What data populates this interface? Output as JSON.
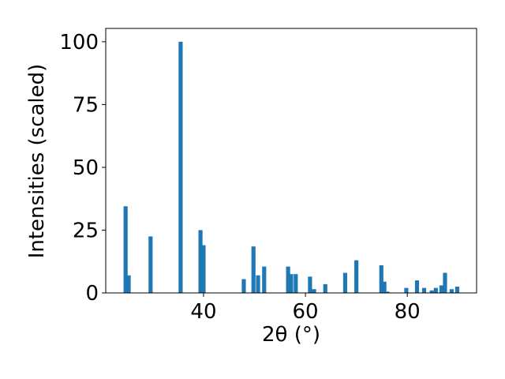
{
  "chart_data": {
    "type": "bar",
    "xlabel": "2θ (°)",
    "ylabel": "Intensities (scaled)",
    "x": [
      24.7,
      25.3,
      29.6,
      35.5,
      39.4,
      40.0,
      47.9,
      49.8,
      50.7,
      51.9,
      56.6,
      57.2,
      58.1,
      60.9,
      61.7,
      63.9,
      67.8,
      70.0,
      74.9,
      75.5,
      76.1,
      79.8,
      81.9,
      83.3,
      84.8,
      85.6,
      86.7,
      87.4,
      88.7,
      89.8
    ],
    "values": [
      34.5,
      7,
      22.5,
      100,
      25,
      19,
      5.5,
      18.5,
      7,
      10.5,
      10.5,
      7.5,
      7.5,
      6.5,
      1.5,
      3.5,
      8,
      13,
      11,
      4.5,
      0.5,
      2,
      5,
      2,
      1,
      2,
      3,
      8,
      1.5,
      2.5
    ],
    "color": "#1f77b4",
    "xlim": [
      20.8,
      93.6
    ],
    "xticks": [
      40,
      60,
      80
    ],
    "ylim": [
      0,
      105.3
    ],
    "yticks": [
      0,
      25,
      50,
      75,
      100
    ]
  }
}
